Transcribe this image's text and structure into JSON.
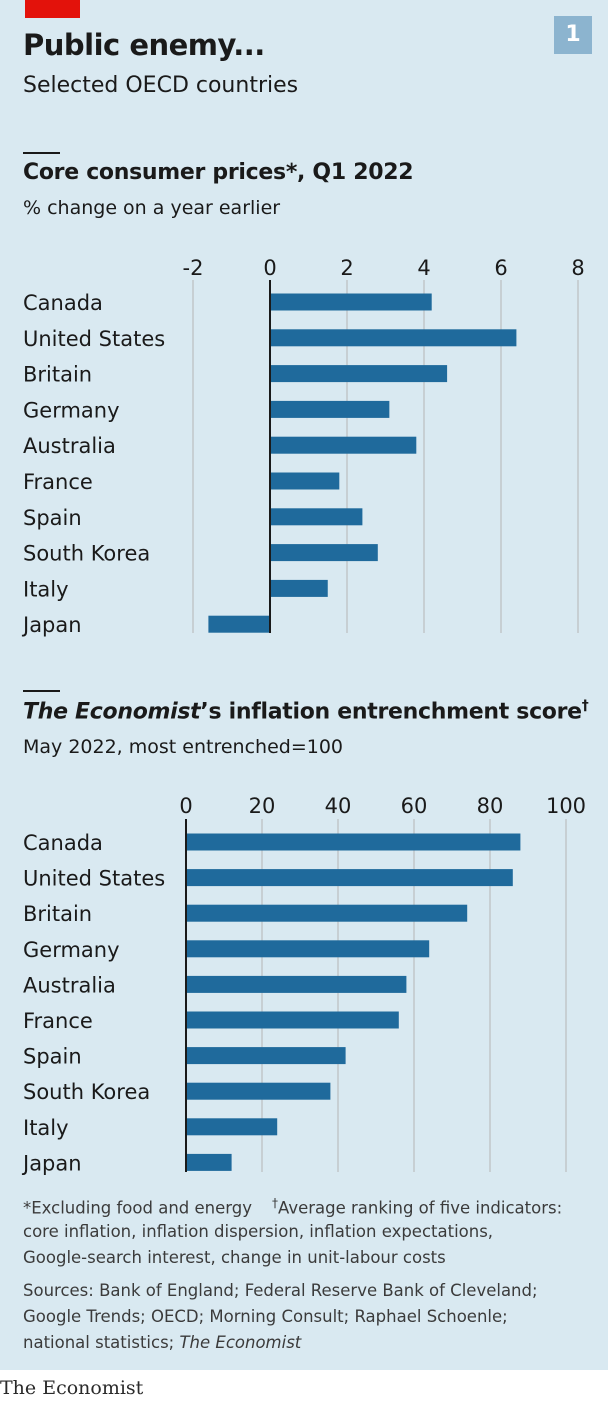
{
  "header": {
    "badge": "1",
    "title": "Public enemy...",
    "subtitle": "Selected OECD countries"
  },
  "colors": {
    "bar": "#1f6a9c",
    "panel": "#d9e9f1",
    "grid": "#b5b5b5",
    "accent": "#e3120b"
  },
  "chart_data": [
    {
      "type": "bar",
      "orientation": "horizontal",
      "title": "Core consumer prices*, Q1 2022",
      "subtitle": "% change on a year earlier",
      "categories": [
        "Canada",
        "United States",
        "Britain",
        "Germany",
        "Australia",
        "France",
        "Spain",
        "South Korea",
        "Italy",
        "Japan"
      ],
      "values": [
        4.2,
        6.4,
        4.6,
        3.1,
        3.8,
        1.8,
        2.4,
        2.8,
        1.5,
        -1.6
      ],
      "xlim": [
        -2,
        8
      ],
      "ticks": [
        "-2",
        "0",
        "2",
        "4",
        "6",
        "8"
      ],
      "tick_values": [
        -2,
        0,
        2,
        4,
        6,
        8
      ],
      "grid": true
    },
    {
      "type": "bar",
      "orientation": "horizontal",
      "title_italic": "The Economist",
      "title_rest": "’s inflation entrenchment score",
      "title_mark": "†",
      "subtitle": "May 2022, most entrenched=100",
      "categories": [
        "Canada",
        "United States",
        "Britain",
        "Germany",
        "Australia",
        "France",
        "Spain",
        "South Korea",
        "Italy",
        "Japan"
      ],
      "values": [
        88,
        86,
        74,
        64,
        58,
        56,
        42,
        38,
        24,
        12
      ],
      "xlim": [
        0,
        100
      ],
      "ticks": [
        "0",
        "20",
        "40",
        "60",
        "80",
        "100"
      ],
      "tick_values": [
        0,
        20,
        40,
        60,
        80,
        100
      ],
      "grid": true
    }
  ],
  "notes": {
    "footnote_star": "*Excluding food and energy",
    "footnote_dagger_mark": "†",
    "footnote_dagger": "Average ranking of five indicators:",
    "footnote_line2": "core inflation, inflation dispersion, inflation expectations,",
    "footnote_line3": "Google-search interest, change in unit-labour costs",
    "sources_line1": "Sources: Bank of England; Federal Reserve Bank of Cleveland;",
    "sources_line2": "Google Trends; OECD; Morning Consult; Raphael Schoenle;",
    "sources_line3_plain": "national statistics; ",
    "sources_line3_italic": "The Economist"
  },
  "brand": "The Economist"
}
